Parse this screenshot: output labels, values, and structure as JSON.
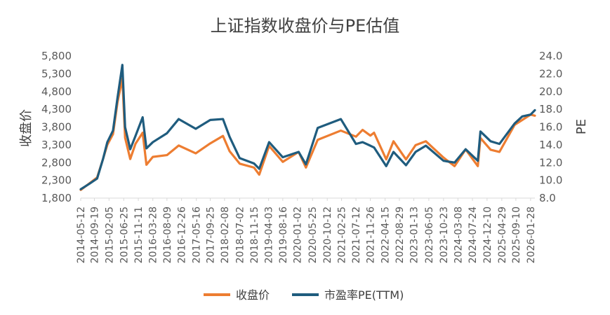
{
  "chart_data": {
    "type": "line",
    "title": "上证指数收盘价与PE估值",
    "ylabel": "收盘价",
    "y2label": "PE",
    "ylim": [
      1800,
      5800
    ],
    "y2lim": [
      8.0,
      24.0
    ],
    "yticks": [
      "1,800",
      "2,300",
      "2,800",
      "3,300",
      "3,800",
      "4,300",
      "4,800",
      "5,300",
      "5,800"
    ],
    "y2ticks": [
      "8.0",
      "10.0",
      "12.0",
      "14.0",
      "16.0",
      "18.0",
      "20.0",
      "22.0",
      "24.0"
    ],
    "xticks": [
      "2014-05-12",
      "2014-09-19",
      "2015-02-05",
      "2015-06-25",
      "2015-11-11",
      "2016-03-28",
      "2016-08-09",
      "2016-12-26",
      "2017-05-16",
      "2017-09-25",
      "2018-02-08",
      "2018-07-02",
      "2018-11-15",
      "2019-04-03",
      "2019-08-16",
      "2020-01-02",
      "2020-05-25",
      "2020-10-12",
      "2021-02-25",
      "2021-07-12",
      "2021-11-26",
      "2022-04-15",
      "2022-08-29",
      "2023-01-13",
      "2023-06-05",
      "2023-10-23",
      "2024-03-08",
      "2024-07-24",
      "2024-12-10",
      "2025-04-29",
      "2025-09-10",
      "2026-01-28"
    ],
    "legend_position": "bottom",
    "series": [
      {
        "name": "收盘价",
        "axis": "left",
        "color": "#ED7D31",
        "points": [
          [
            "2014-05-12",
            2030
          ],
          [
            "2014-08-01",
            2210
          ],
          [
            "2014-10-15",
            2380
          ],
          [
            "2014-12-10",
            2900
          ],
          [
            "2015-01-20",
            3300
          ],
          [
            "2015-03-15",
            3600
          ],
          [
            "2015-04-27",
            4500
          ],
          [
            "2015-06-12",
            5170
          ],
          [
            "2015-07-08",
            3500
          ],
          [
            "2015-08-26",
            2900
          ],
          [
            "2015-10-15",
            3330
          ],
          [
            "2015-12-22",
            3640
          ],
          [
            "2016-01-27",
            2740
          ],
          [
            "2016-03-28",
            2960
          ],
          [
            "2016-08-09",
            3010
          ],
          [
            "2016-11-29",
            3280
          ],
          [
            "2017-05-10",
            3060
          ],
          [
            "2017-09-25",
            3340
          ],
          [
            "2018-01-24",
            3550
          ],
          [
            "2018-03-28",
            3120
          ],
          [
            "2018-07-02",
            2770
          ],
          [
            "2018-11-15",
            2660
          ],
          [
            "2019-01-04",
            2460
          ],
          [
            "2019-04-08",
            3270
          ],
          [
            "2019-08-16",
            2820
          ],
          [
            "2020-01-14",
            3100
          ],
          [
            "2020-03-23",
            2660
          ],
          [
            "2020-07-13",
            3440
          ],
          [
            "2021-02-18",
            3700
          ],
          [
            "2021-07-12",
            3530
          ],
          [
            "2021-09-13",
            3720
          ],
          [
            "2021-11-26",
            3560
          ],
          [
            "2021-12-31",
            3640
          ],
          [
            "2022-04-26",
            2890
          ],
          [
            "2022-07-04",
            3400
          ],
          [
            "2022-10-31",
            2890
          ],
          [
            "2023-01-30",
            3290
          ],
          [
            "2023-05-08",
            3400
          ],
          [
            "2023-10-23",
            2940
          ],
          [
            "2024-02-05",
            2700
          ],
          [
            "2024-05-20",
            3170
          ],
          [
            "2024-09-13",
            2700
          ],
          [
            "2024-10-08",
            3490
          ],
          [
            "2025-01-13",
            3160
          ],
          [
            "2025-04-07",
            3100
          ],
          [
            "2025-08-29",
            3860
          ],
          [
            "2025-11-10",
            4000
          ],
          [
            "2026-01-28",
            4150
          ],
          [
            "2026-03-10",
            4120
          ]
        ]
      },
      {
        "name": "市盈率PE(TTM)",
        "axis": "right",
        "color": "#1F5C7E",
        "points": [
          [
            "2014-05-12",
            9.0
          ],
          [
            "2014-08-01",
            9.6
          ],
          [
            "2014-10-15",
            10.2
          ],
          [
            "2014-12-10",
            12.4
          ],
          [
            "2015-01-20",
            14.3
          ],
          [
            "2015-03-15",
            15.6
          ],
          [
            "2015-04-27",
            19.3
          ],
          [
            "2015-06-12",
            23.0
          ],
          [
            "2015-07-08",
            16.0
          ],
          [
            "2015-08-26",
            13.5
          ],
          [
            "2015-10-15",
            15.0
          ],
          [
            "2015-12-22",
            17.1
          ],
          [
            "2016-01-27",
            13.6
          ],
          [
            "2016-03-28",
            14.3
          ],
          [
            "2016-08-09",
            15.3
          ],
          [
            "2016-11-29",
            16.9
          ],
          [
            "2017-05-10",
            15.8
          ],
          [
            "2017-09-25",
            16.8
          ],
          [
            "2018-01-24",
            16.9
          ],
          [
            "2018-03-28",
            14.9
          ],
          [
            "2018-07-02",
            12.5
          ],
          [
            "2018-11-15",
            11.9
          ],
          [
            "2019-01-04",
            11.3
          ],
          [
            "2019-04-08",
            14.3
          ],
          [
            "2019-08-16",
            12.6
          ],
          [
            "2020-01-14",
            13.2
          ],
          [
            "2020-03-23",
            11.8
          ],
          [
            "2020-07-13",
            15.9
          ],
          [
            "2021-02-18",
            16.9
          ],
          [
            "2021-07-12",
            14.1
          ],
          [
            "2021-09-13",
            14.3
          ],
          [
            "2021-11-26",
            13.9
          ],
          [
            "2021-12-31",
            13.7
          ],
          [
            "2022-04-26",
            11.6
          ],
          [
            "2022-07-04",
            13.2
          ],
          [
            "2022-10-31",
            11.7
          ],
          [
            "2023-01-30",
            13.2
          ],
          [
            "2023-05-08",
            13.9
          ],
          [
            "2023-10-23",
            12.2
          ],
          [
            "2024-02-05",
            12.0
          ],
          [
            "2024-05-20",
            13.5
          ],
          [
            "2024-09-13",
            12.2
          ],
          [
            "2024-10-08",
            15.5
          ],
          [
            "2025-01-13",
            14.4
          ],
          [
            "2025-04-07",
            14.1
          ],
          [
            "2025-08-29",
            16.4
          ],
          [
            "2025-11-10",
            17.2
          ],
          [
            "2026-01-28",
            17.4
          ],
          [
            "2026-03-10",
            17.9
          ]
        ]
      }
    ]
  }
}
